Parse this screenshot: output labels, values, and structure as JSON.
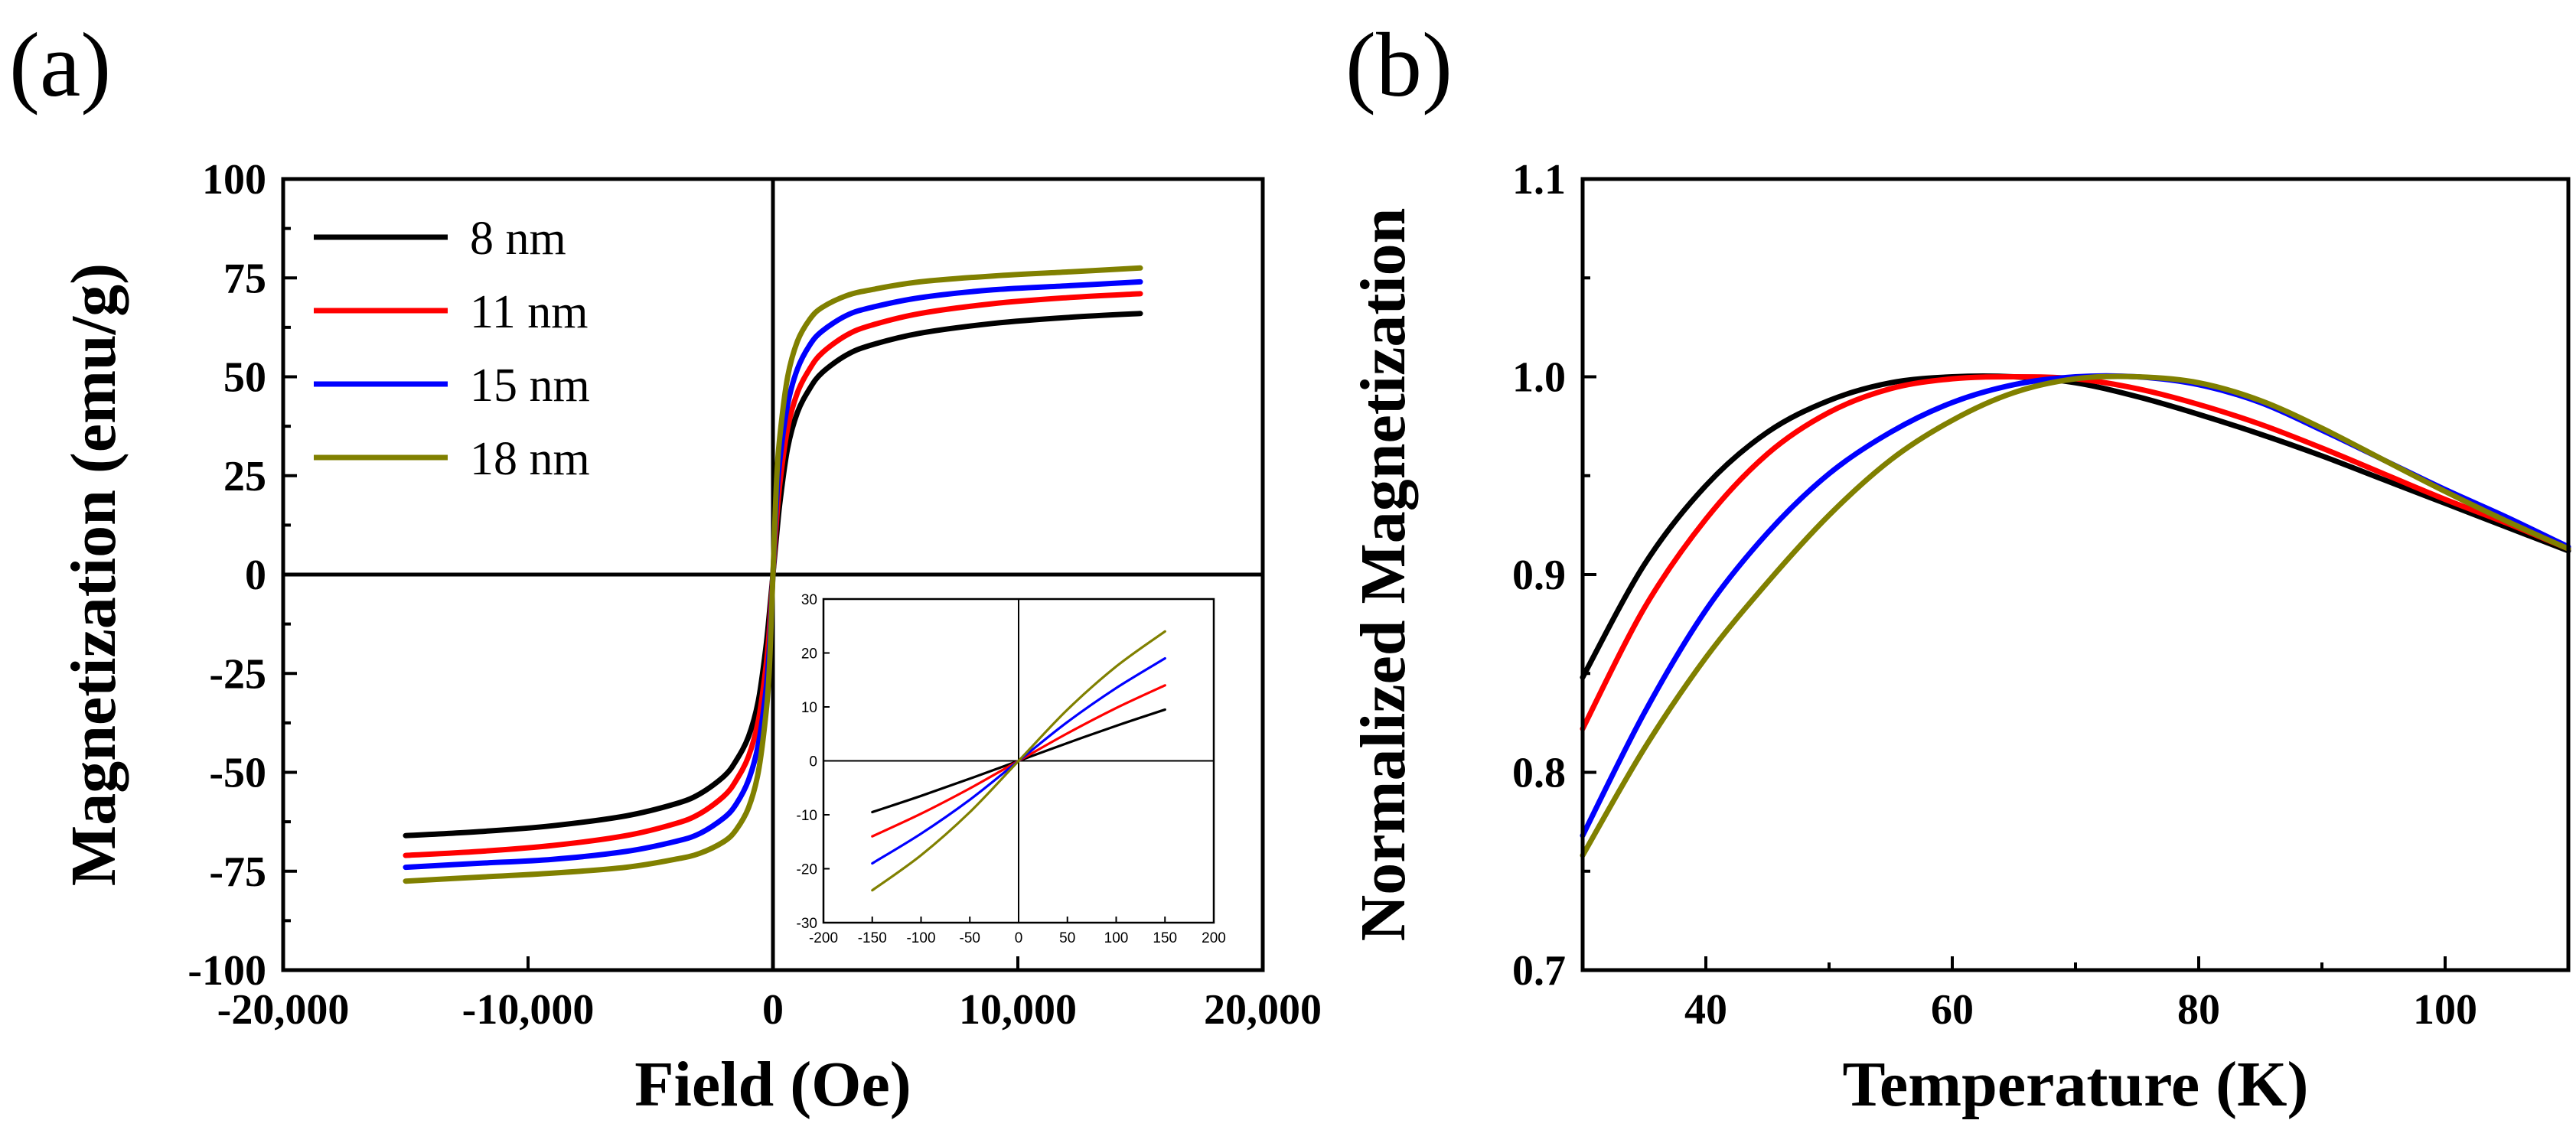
{
  "chart_data": [
    {
      "panel": "(a)",
      "type": "line",
      "xlabel": "Field (Oe)",
      "ylabel": "Magnetization (emu/g)",
      "xlim": [
        -20000,
        20000
      ],
      "ylim": [
        -100,
        100
      ],
      "xticks": [
        -20000,
        -10000,
        0,
        10000,
        20000
      ],
      "xtick_labels": [
        "-20,000",
        "-10,000",
        "0",
        "10,000",
        "20,000"
      ],
      "yticks": [
        -100,
        -75,
        -50,
        -25,
        0,
        25,
        50,
        75,
        100
      ],
      "ytick_labels": [
        "-100",
        "-75",
        "-50",
        "-25",
        "0",
        "25",
        "50",
        "75",
        "100"
      ],
      "legend_position": "top-left",
      "series": [
        {
          "name": "8 nm",
          "color": "#000000",
          "x": [
            -15000,
            -12000,
            -9000,
            -6000,
            -4000,
            -3000,
            -2000,
            -1500,
            -1000,
            -600,
            -300,
            -150,
            0,
            150,
            300,
            600,
            1000,
            1500,
            2000,
            3000,
            4000,
            6000,
            9000,
            12000,
            15000
          ],
          "y": [
            -66,
            -65,
            -63.5,
            -61,
            -58,
            -55.5,
            -51,
            -47,
            -41,
            -32,
            -19,
            -10,
            0,
            10,
            19,
            32,
            41,
            47,
            51,
            55.5,
            58,
            61,
            63.5,
            65,
            66
          ]
        },
        {
          "name": "11 nm",
          "color": "#ff0000",
          "x": [
            -15000,
            -12000,
            -9000,
            -6000,
            -4000,
            -3000,
            -2000,
            -1500,
            -1000,
            -600,
            -300,
            -150,
            0,
            150,
            300,
            600,
            1000,
            1500,
            2000,
            3000,
            4000,
            6000,
            9000,
            12000,
            15000
          ],
          "y": [
            -71,
            -70,
            -68.5,
            -66,
            -63,
            -60.5,
            -56,
            -52,
            -46,
            -37,
            -24,
            -14,
            0,
            14,
            24,
            37,
            46,
            52,
            56,
            60.5,
            63,
            66,
            68.5,
            70,
            71
          ]
        },
        {
          "name": "15 nm",
          "color": "#0000ff",
          "x": [
            -15000,
            -12000,
            -9000,
            -6000,
            -4000,
            -3000,
            -2000,
            -1500,
            -1000,
            -600,
            -300,
            -150,
            0,
            150,
            300,
            600,
            1000,
            1500,
            2000,
            3000,
            4000,
            6000,
            9000,
            12000,
            15000
          ],
          "y": [
            -74,
            -73,
            -72,
            -70,
            -67.5,
            -65.5,
            -61.5,
            -58,
            -52,
            -43,
            -30,
            -19,
            0,
            19,
            30,
            43,
            52,
            58,
            61.5,
            65.5,
            67.5,
            70,
            72,
            73,
            74
          ]
        },
        {
          "name": "18 nm",
          "color": "#808000",
          "x": [
            -15000,
            -12000,
            -9000,
            -6000,
            -4000,
            -3000,
            -2000,
            -1500,
            -1000,
            -600,
            -300,
            -150,
            0,
            150,
            300,
            600,
            1000,
            1500,
            2000,
            3000,
            4000,
            6000,
            9000,
            12000,
            15000
          ],
          "y": [
            -77.5,
            -76.5,
            -75.5,
            -74,
            -72,
            -70.5,
            -67.5,
            -64.5,
            -59,
            -50,
            -36,
            -24,
            0,
            24,
            36,
            50,
            59,
            64.5,
            67.5,
            70.5,
            72,
            74,
            75.5,
            76.5,
            77.5
          ]
        }
      ],
      "inset": {
        "type": "line",
        "xlim": [
          -200,
          200
        ],
        "ylim": [
          -30,
          30
        ],
        "xticks": [
          -200,
          -150,
          -100,
          -50,
          0,
          50,
          100,
          150,
          200
        ],
        "xtick_labels": [
          "-200",
          "-150",
          "-100",
          "-50",
          "0",
          "50",
          "100",
          "150",
          "200"
        ],
        "yticks": [
          -30,
          -20,
          -10,
          0,
          10,
          20,
          30
        ],
        "ytick_labels": [
          "-30",
          "-20",
          "-10",
          "0",
          "10",
          "20",
          "30"
        ],
        "series": [
          {
            "name": "8 nm",
            "color": "#000000",
            "x": [
              -150,
              -100,
              -50,
              0,
              50,
              100,
              150
            ],
            "y": [
              -9.5,
              -6.5,
              -3.3,
              0,
              3.3,
              6.5,
              9.5
            ]
          },
          {
            "name": "11 nm",
            "color": "#ff0000",
            "x": [
              -150,
              -100,
              -50,
              0,
              50,
              100,
              150
            ],
            "y": [
              -14,
              -9.8,
              -5.1,
              0,
              5.1,
              9.8,
              14
            ]
          },
          {
            "name": "15 nm",
            "color": "#0000ff",
            "x": [
              -150,
              -100,
              -50,
              0,
              50,
              100,
              150
            ],
            "y": [
              -19,
              -13.5,
              -7.2,
              0,
              7.2,
              13.5,
              19
            ]
          },
          {
            "name": "18 nm",
            "color": "#808000",
            "x": [
              -150,
              -100,
              -50,
              0,
              50,
              100,
              150
            ],
            "y": [
              -24,
              -17.5,
              -9.5,
              0,
              9.5,
              17.5,
              24
            ]
          }
        ]
      }
    },
    {
      "panel": "(b)",
      "type": "line",
      "xlabel": "Temperature (K)",
      "ylabel": "Normalized Magnetization",
      "xlim": [
        30,
        110
      ],
      "ylim": [
        0.7,
        1.1
      ],
      "xticks": [
        40,
        60,
        80,
        100
      ],
      "xtick_labels": [
        "40",
        "60",
        "80",
        "100"
      ],
      "yticks": [
        0.7,
        0.8,
        0.9,
        1.0,
        1.1
      ],
      "ytick_labels": [
        "0.7",
        "0.8",
        "0.9",
        "1.0",
        "1.1"
      ],
      "series": [
        {
          "name": "8 nm",
          "color": "#000000",
          "x": [
            30,
            35,
            40,
            45,
            50,
            55,
            60,
            65,
            70,
            75,
            80,
            85,
            90,
            95,
            100,
            105,
            110
          ],
          "y": [
            0.848,
            0.905,
            0.945,
            0.972,
            0.988,
            0.997,
            1.0,
            1.0,
            0.997,
            0.99,
            0.981,
            0.971,
            0.96,
            0.948,
            0.936,
            0.924,
            0.912
          ]
        },
        {
          "name": "11 nm",
          "color": "#ff0000",
          "x": [
            30,
            35,
            40,
            45,
            50,
            55,
            60,
            65,
            70,
            75,
            80,
            85,
            90,
            95,
            100,
            105,
            110
          ],
          "y": [
            0.822,
            0.883,
            0.928,
            0.961,
            0.982,
            0.994,
            0.999,
            1.0,
            0.999,
            0.994,
            0.986,
            0.976,
            0.964,
            0.951,
            0.938,
            0.926,
            0.913
          ]
        },
        {
          "name": "15 nm",
          "color": "#0000ff",
          "x": [
            30,
            35,
            40,
            45,
            50,
            55,
            60,
            65,
            70,
            75,
            80,
            85,
            90,
            95,
            100,
            105,
            110
          ],
          "y": [
            0.768,
            0.83,
            0.882,
            0.921,
            0.951,
            0.972,
            0.987,
            0.996,
            1.0,
            1.0,
            0.996,
            0.987,
            0.973,
            0.958,
            0.943,
            0.929,
            0.914
          ]
        },
        {
          "name": "18 nm",
          "color": "#808000",
          "x": [
            30,
            35,
            40,
            45,
            50,
            55,
            60,
            65,
            70,
            75,
            80,
            85,
            90,
            95,
            100,
            105,
            110
          ],
          "y": [
            0.758,
            0.812,
            0.858,
            0.896,
            0.93,
            0.958,
            0.978,
            0.992,
            0.999,
            1.0,
            0.997,
            0.988,
            0.974,
            0.958,
            0.942,
            0.927,
            0.913
          ]
        }
      ]
    }
  ]
}
